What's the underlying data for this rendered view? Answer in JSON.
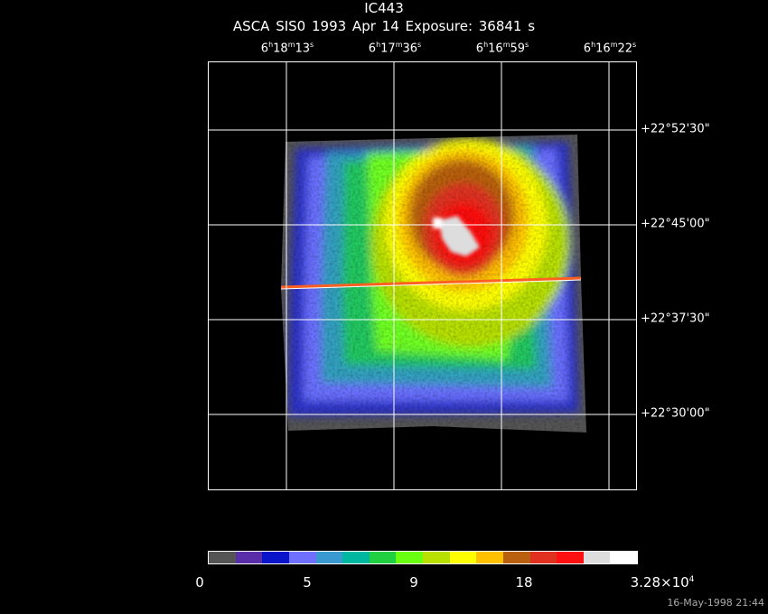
{
  "header": {
    "title": "IC443",
    "subtitle": "ASCA SIS0   1993 Apr 14    Exposure: 36841  s"
  },
  "ra_labels": [
    {
      "h": "6",
      "m": "18",
      "s": "13"
    },
    {
      "h": "6",
      "m": "17",
      "s": "36"
    },
    {
      "h": "6",
      "m": "16",
      "s": "59"
    },
    {
      "h": "6",
      "m": "16",
      "s": "22"
    }
  ],
  "dec_labels": [
    "+22°52'30\"",
    "+22°45'00\"",
    "+22°37'30\"",
    "+22°30'00\""
  ],
  "colorbar": {
    "colors": [
      "#555555",
      "#5a2ea8",
      "#0a14c8",
      "#7070ff",
      "#3a9ad0",
      "#00b8a0",
      "#20d040",
      "#6aff10",
      "#b8e000",
      "#ffff00",
      "#ffc000",
      "#b86010",
      "#e03020",
      "#ff1010",
      "#dddddd",
      "#ffffff"
    ],
    "ticks": [
      "0",
      "5",
      "9",
      "18"
    ],
    "max_label": "3.28×10",
    "max_exp": "4"
  },
  "timestamp": "16-May-1998 21:44"
}
